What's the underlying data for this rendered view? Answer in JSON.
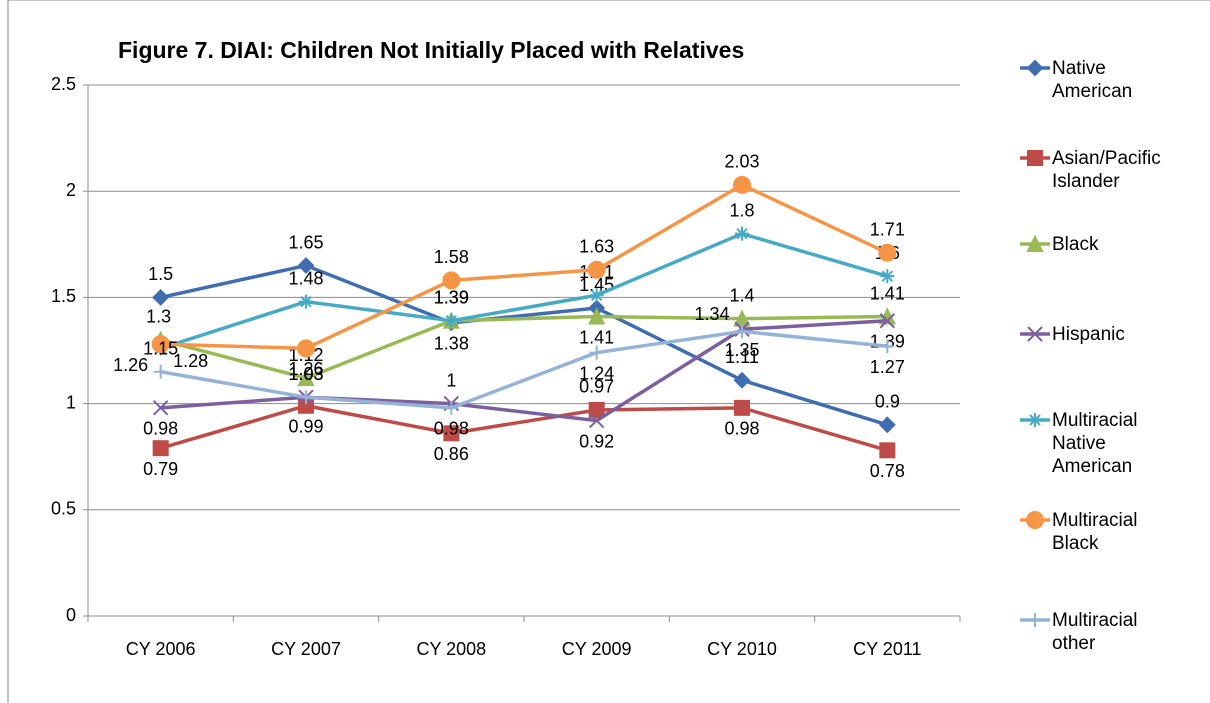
{
  "chart_data": {
    "type": "line",
    "title": "Figure 7. DIAI: Children Not Initially Placed with Relatives",
    "categories": [
      "CY 2006",
      "CY 2007",
      "CY 2008",
      "CY 2009",
      "CY 2010",
      "CY 2011"
    ],
    "ylim": [
      0,
      2.5
    ],
    "yticks": [
      0,
      0.5,
      1,
      1.5,
      2,
      2.5
    ],
    "grid": true,
    "legend": "right",
    "series": [
      {
        "name": "Native American",
        "color": "#3f6db0",
        "marker": "diamond",
        "values": [
          1.5,
          1.65,
          1.38,
          1.45,
          1.11,
          0.9
        ]
      },
      {
        "name": "Asian/Pacific Islander",
        "color": "#be4b48",
        "marker": "square",
        "values": [
          0.79,
          0.99,
          0.86,
          0.97,
          0.98,
          0.78
        ]
      },
      {
        "name": "Black",
        "color": "#98b954",
        "marker": "triangle",
        "values": [
          1.3,
          1.12,
          1.39,
          1.41,
          1.4,
          1.41
        ]
      },
      {
        "name": "Hispanic",
        "color": "#7d5fa0",
        "marker": "x",
        "values": [
          0.98,
          1.03,
          1,
          0.92,
          1.35,
          1.39
        ]
      },
      {
        "name": "Multiracial Native American",
        "color": "#46aac5",
        "marker": "star",
        "values": [
          1.26,
          1.48,
          1.39,
          1.51,
          1.8,
          1.6
        ]
      },
      {
        "name": "Multiracial Black",
        "color": "#f69546",
        "marker": "circle",
        "values": [
          1.28,
          1.26,
          1.58,
          1.63,
          2.03,
          1.71
        ]
      },
      {
        "name": "Multiracial other",
        "color": "#95b3d7",
        "marker": "plus",
        "values": [
          1.15,
          1.03,
          0.98,
          1.24,
          1.34,
          1.27
        ]
      }
    ]
  }
}
